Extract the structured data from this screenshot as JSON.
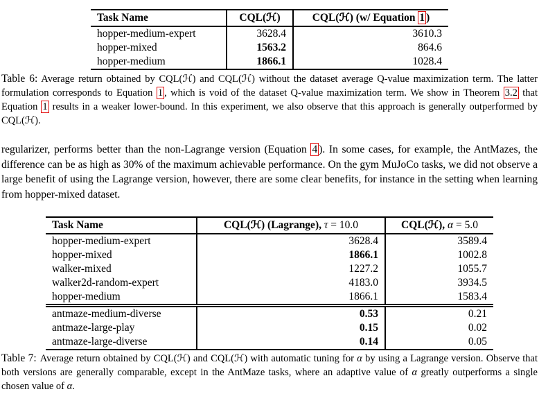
{
  "colors": {
    "background": "#ffffff",
    "text": "#000000",
    "link_box": "#e30b0b"
  },
  "table6": {
    "header": {
      "task": "Task Name",
      "col2": [
        {
          "t": "CQL(ℋ)"
        }
      ],
      "col3": [
        {
          "t": "CQL(ℋ) (w/ Equation "
        },
        {
          "t": "1",
          "st": "ref"
        },
        {
          "t": ")"
        }
      ]
    },
    "groups": [
      [
        [
          "hopper-medium-expert",
          {
            "t": "3628.4"
          },
          {
            "t": "3610.3"
          }
        ],
        [
          "hopper-mixed",
          {
            "t": "1563.2",
            "b": true
          },
          {
            "t": "864.6"
          }
        ],
        [
          "hopper-medium",
          {
            "t": "1866.1",
            "b": true
          },
          {
            "t": "1028.4"
          }
        ]
      ]
    ],
    "caption_label": "Table 6:",
    "caption": [
      {
        "t": "Average return obtained by CQL(ℋ) and CQL(ℋ) without the dataset average Q-value maximization term. The latter formulation corresponds to Equation "
      },
      {
        "t": "1",
        "st": "ref"
      },
      {
        "t": ", which is void of the dataset Q-value maximization term. We show in Theorem "
      },
      {
        "t": "3.2",
        "st": "ref"
      },
      {
        "t": " that Equation "
      },
      {
        "t": "1",
        "st": "ref"
      },
      {
        "t": " results in a weaker lower-bound. In this experiment, we also observe that this approach is generally outperformed by CQL(ℋ)."
      }
    ]
  },
  "paragraph": [
    {
      "t": "regularizer, performs better than the non-Lagrange version (Equation "
    },
    {
      "t": "4",
      "st": "ref"
    },
    {
      "t": "). In some cases, for example, the AntMazes, the difference can be as high as 30% of the maximum achievable performance. On the gym MuJoCo tasks, we did not observe a large benefit of using the Lagrange version, however, there are some clear benefits, for instance in the setting when learning from hopper-mixed dataset."
    }
  ],
  "table7": {
    "header": {
      "task": "Task Name",
      "col2": [
        {
          "t": "CQL(ℋ) (Lagrange), "
        },
        {
          "t": "τ",
          "st": "mvar"
        },
        {
          "t": " = 10.0",
          "st": "m"
        }
      ],
      "col3": [
        {
          "t": "CQL(ℋ), "
        },
        {
          "t": "α",
          "st": "mvar"
        },
        {
          "t": " = 5.0",
          "st": "m"
        }
      ]
    },
    "groups": [
      [
        [
          "hopper-medium-expert",
          {
            "t": "3628.4"
          },
          {
            "t": "3589.4"
          }
        ],
        [
          "hopper-mixed",
          {
            "t": "1866.1",
            "b": true
          },
          {
            "t": "1002.8"
          }
        ],
        [
          "walker-mixed",
          {
            "t": "1227.2"
          },
          {
            "t": "1055.7"
          }
        ],
        [
          "walker2d-random-expert",
          {
            "t": "4183.0"
          },
          {
            "t": "3934.5"
          }
        ],
        [
          "hopper-medium",
          {
            "t": "1866.1"
          },
          {
            "t": "1583.4"
          }
        ]
      ],
      [
        [
          "antmaze-medium-diverse",
          {
            "t": "0.53",
            "b": true
          },
          {
            "t": "0.21"
          }
        ],
        [
          "antmaze-large-play",
          {
            "t": "0.15",
            "b": true
          },
          {
            "t": "0.02"
          }
        ],
        [
          "antmaze-large-diverse",
          {
            "t": "0.14",
            "b": true
          },
          {
            "t": "0.05"
          }
        ]
      ]
    ],
    "caption_label": "Table 7:",
    "caption": [
      {
        "t": "Average return obtained by CQL(ℋ) and CQL(ℋ) with automatic tuning for "
      },
      {
        "t": "α",
        "st": "mvar"
      },
      {
        "t": " by using a Lagrange version. Observe that both versions are generally comparable, except in the AntMaze tasks, where an adaptive value of "
      },
      {
        "t": "α",
        "st": "mvar"
      },
      {
        "t": " greatly outperforms a single chosen value of "
      },
      {
        "t": "α",
        "st": "mvar"
      },
      {
        "t": "."
      }
    ]
  }
}
